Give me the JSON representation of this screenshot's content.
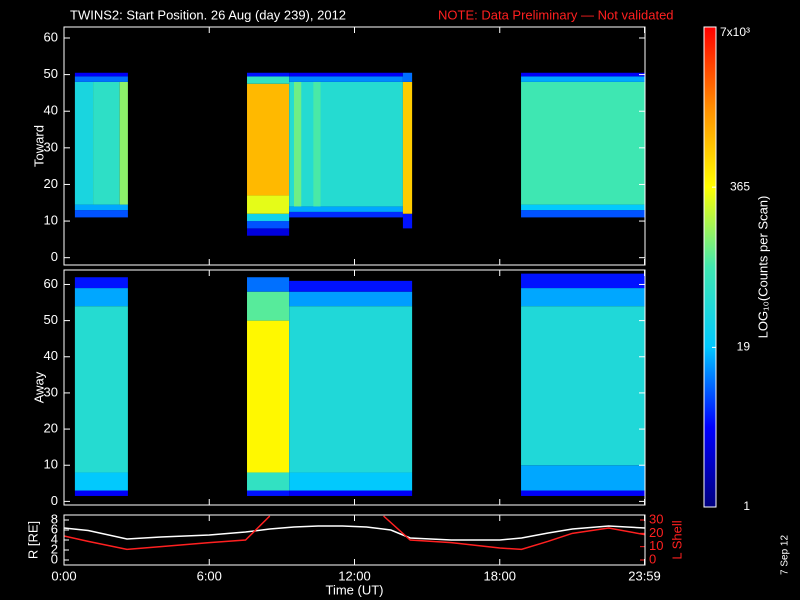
{
  "title": "TWINS2: Start Position. 26 Aug (day 239), 2012",
  "note": "NOTE: Data Preliminary — Not validated",
  "footer": "7 Sep 12",
  "colorbar": {
    "label": "LOG₁₀(Counts per Scan)",
    "log": true,
    "clim": [
      1,
      7000
    ],
    "ticks": [
      {
        "value": 7000,
        "label": "7x10³"
      },
      365,
      19,
      1
    ],
    "colormap": [
      "#00007f",
      "#0000ff",
      "#00c8ff",
      "#40e8b0",
      "#ffff00",
      "#ff8c00",
      "#ff0000"
    ]
  },
  "chart_data": [
    {
      "type": "heatmap",
      "ylabel": "Toward",
      "xlim": [
        0,
        24
      ],
      "ylim": [
        -2,
        63
      ],
      "yticks": [
        0,
        10,
        20,
        30,
        40,
        50,
        60
      ],
      "cells": [
        {
          "x": [
            0.45,
            2.64
          ],
          "y": [
            11,
            13
          ],
          "value": 8
        },
        {
          "x": [
            0.45,
            2.64
          ],
          "y": [
            13,
            14.5
          ],
          "value": 15
        },
        {
          "x": [
            0.45,
            1.2
          ],
          "y": [
            14.5,
            48
          ],
          "value": 35
        },
        {
          "x": [
            1.2,
            2.3
          ],
          "y": [
            14.5,
            48
          ],
          "value": 55
        },
        {
          "x": [
            2.3,
            2.64
          ],
          "y": [
            14.5,
            48
          ],
          "value": 150
        },
        {
          "x": [
            0.45,
            2.64
          ],
          "y": [
            48,
            49.5
          ],
          "value": 10
        },
        {
          "x": [
            0.45,
            2.64
          ],
          "y": [
            49.5,
            50.5
          ],
          "value": 4
        },
        {
          "x": [
            7.56,
            9.3
          ],
          "y": [
            6,
            8
          ],
          "value": 3
        },
        {
          "x": [
            7.56,
            9.3
          ],
          "y": [
            8,
            10
          ],
          "value": 8
        },
        {
          "x": [
            7.56,
            9.3
          ],
          "y": [
            10,
            12
          ],
          "value": 30
        },
        {
          "x": [
            7.56,
            9.3
          ],
          "y": [
            12,
            17
          ],
          "value": 300
        },
        {
          "x": [
            7.56,
            9.3
          ],
          "y": [
            17,
            47.5
          ],
          "value": 900
        },
        {
          "x": [
            7.56,
            9.3
          ],
          "y": [
            47.5,
            49.5
          ],
          "value": 60
        },
        {
          "x": [
            7.56,
            9.3
          ],
          "y": [
            49.5,
            50.5
          ],
          "value": 5
        },
        {
          "x": [
            9.3,
            14.0
          ],
          "y": [
            11,
            12.5
          ],
          "value": 6
        },
        {
          "x": [
            9.3,
            14.0
          ],
          "y": [
            12.5,
            14
          ],
          "value": 15
        },
        {
          "x": [
            9.3,
            14.0
          ],
          "y": [
            14,
            48
          ],
          "value": 45
        },
        {
          "x": [
            9.5,
            9.8
          ],
          "y": [
            14,
            48
          ],
          "value": 120
        },
        {
          "x": [
            10.3,
            10.6
          ],
          "y": [
            14,
            48
          ],
          "value": 90
        },
        {
          "x": [
            9.3,
            14.0
          ],
          "y": [
            48,
            49.5
          ],
          "value": 12
        },
        {
          "x": [
            9.3,
            14.0
          ],
          "y": [
            49.5,
            50.5
          ],
          "value": 4
        },
        {
          "x": [
            14.0,
            14.38
          ],
          "y": [
            8,
            12
          ],
          "value": 5
        },
        {
          "x": [
            14.0,
            14.38
          ],
          "y": [
            12,
            48
          ],
          "value": 700
        },
        {
          "x": [
            14.0,
            14.38
          ],
          "y": [
            48,
            50.5
          ],
          "value": 10
        },
        {
          "x": [
            18.88,
            24
          ],
          "y": [
            11,
            13
          ],
          "value": 8
        },
        {
          "x": [
            18.88,
            24
          ],
          "y": [
            13,
            14.5
          ],
          "value": 20
        },
        {
          "x": [
            18.88,
            24
          ],
          "y": [
            14.5,
            48
          ],
          "value": 80
        },
        {
          "x": [
            18.88,
            24
          ],
          "y": [
            48,
            49.5
          ],
          "value": 15
        },
        {
          "x": [
            18.88,
            24
          ],
          "y": [
            49.5,
            50.5
          ],
          "value": 4
        }
      ]
    },
    {
      "type": "heatmap",
      "ylabel": "Away",
      "xlim": [
        0,
        24
      ],
      "ylim": [
        -1,
        64
      ],
      "yticks": [
        0,
        10,
        20,
        30,
        40,
        50,
        60
      ],
      "cells": [
        {
          "x": [
            0.45,
            2.64
          ],
          "y": [
            1.5,
            3
          ],
          "value": 4
        },
        {
          "x": [
            0.45,
            2.64
          ],
          "y": [
            3,
            8
          ],
          "value": 20
        },
        {
          "x": [
            0.45,
            2.64
          ],
          "y": [
            8,
            54
          ],
          "value": 45
        },
        {
          "x": [
            0.45,
            2.64
          ],
          "y": [
            54,
            59
          ],
          "value": 15
        },
        {
          "x": [
            0.45,
            2.64
          ],
          "y": [
            59,
            62
          ],
          "value": 5
        },
        {
          "x": [
            7.56,
            9.3
          ],
          "y": [
            1.5,
            3
          ],
          "value": 5
        },
        {
          "x": [
            7.56,
            9.3
          ],
          "y": [
            3,
            8
          ],
          "value": 60
        },
        {
          "x": [
            7.56,
            9.3
          ],
          "y": [
            8,
            50
          ],
          "value": 400
        },
        {
          "x": [
            7.56,
            9.3
          ],
          "y": [
            50,
            58
          ],
          "value": 100
        },
        {
          "x": [
            7.56,
            9.3
          ],
          "y": [
            58,
            62
          ],
          "value": 10
        },
        {
          "x": [
            9.3,
            14.38
          ],
          "y": [
            1.5,
            3
          ],
          "value": 4
        },
        {
          "x": [
            9.3,
            14.38
          ],
          "y": [
            3,
            8
          ],
          "value": 20
        },
        {
          "x": [
            9.3,
            14.38
          ],
          "y": [
            8,
            54
          ],
          "value": 40
        },
        {
          "x": [
            9.3,
            14.38
          ],
          "y": [
            54,
            58
          ],
          "value": 14
        },
        {
          "x": [
            9.3,
            14.38
          ],
          "y": [
            58,
            61
          ],
          "value": 5
        },
        {
          "x": [
            18.88,
            24
          ],
          "y": [
            1.5,
            3
          ],
          "value": 4
        },
        {
          "x": [
            18.88,
            24
          ],
          "y": [
            3,
            10
          ],
          "value": 15
        },
        {
          "x": [
            18.88,
            24
          ],
          "y": [
            10,
            54
          ],
          "value": 40
        },
        {
          "x": [
            18.88,
            24
          ],
          "y": [
            54,
            59
          ],
          "value": 15
        },
        {
          "x": [
            18.88,
            24
          ],
          "y": [
            59,
            63
          ],
          "value": 5
        }
      ]
    },
    {
      "type": "line",
      "xlabel": "Time (UT)",
      "xlim": [
        0,
        24
      ],
      "xticks": [
        {
          "value": 0,
          "label": "0:00"
        },
        {
          "value": 6,
          "label": "6:00"
        },
        {
          "value": 12,
          "label": "12:00"
        },
        {
          "value": 18,
          "label": "18:00"
        },
        {
          "value": 23.98,
          "label": "23:59"
        }
      ],
      "ylabel": "R [RE]",
      "ylim": [
        -1,
        9
      ],
      "yticks": [
        0,
        2,
        4,
        6,
        8
      ],
      "y2label": "L Shell",
      "y2lim": [
        -3.75,
        33.75
      ],
      "y2ticks": [
        0,
        10,
        20,
        30
      ],
      "y2color": "#ff2020",
      "series": [
        {
          "color": "#ffffff",
          "x": [
            0,
            1,
            2.6,
            4,
            6,
            7.5,
            8.5,
            9.5,
            10.5,
            11.5,
            12.5,
            13.5,
            14.3,
            16,
            18,
            18.9,
            20,
            21,
            22.5,
            24
          ],
          "values": [
            6.4,
            5.9,
            4.2,
            4.6,
            5.0,
            5.6,
            6.2,
            6.6,
            6.8,
            6.8,
            6.6,
            6.0,
            4.4,
            4.0,
            4.0,
            4.4,
            5.4,
            6.2,
            6.8,
            6.4
          ]
        },
        {
          "color": "#ff2020",
          "axis": "y2",
          "x": [
            0,
            1,
            2.6,
            4,
            6,
            7.5,
            8.5,
            9,
            13.2,
            14.3,
            16,
            18,
            18.9,
            20,
            21,
            22.5,
            24
          ],
          "values": [
            18,
            14,
            8,
            10,
            13,
            15,
            33,
            null,
            33,
            15,
            13,
            9,
            8,
            14,
            20,
            24,
            19
          ]
        }
      ]
    }
  ]
}
